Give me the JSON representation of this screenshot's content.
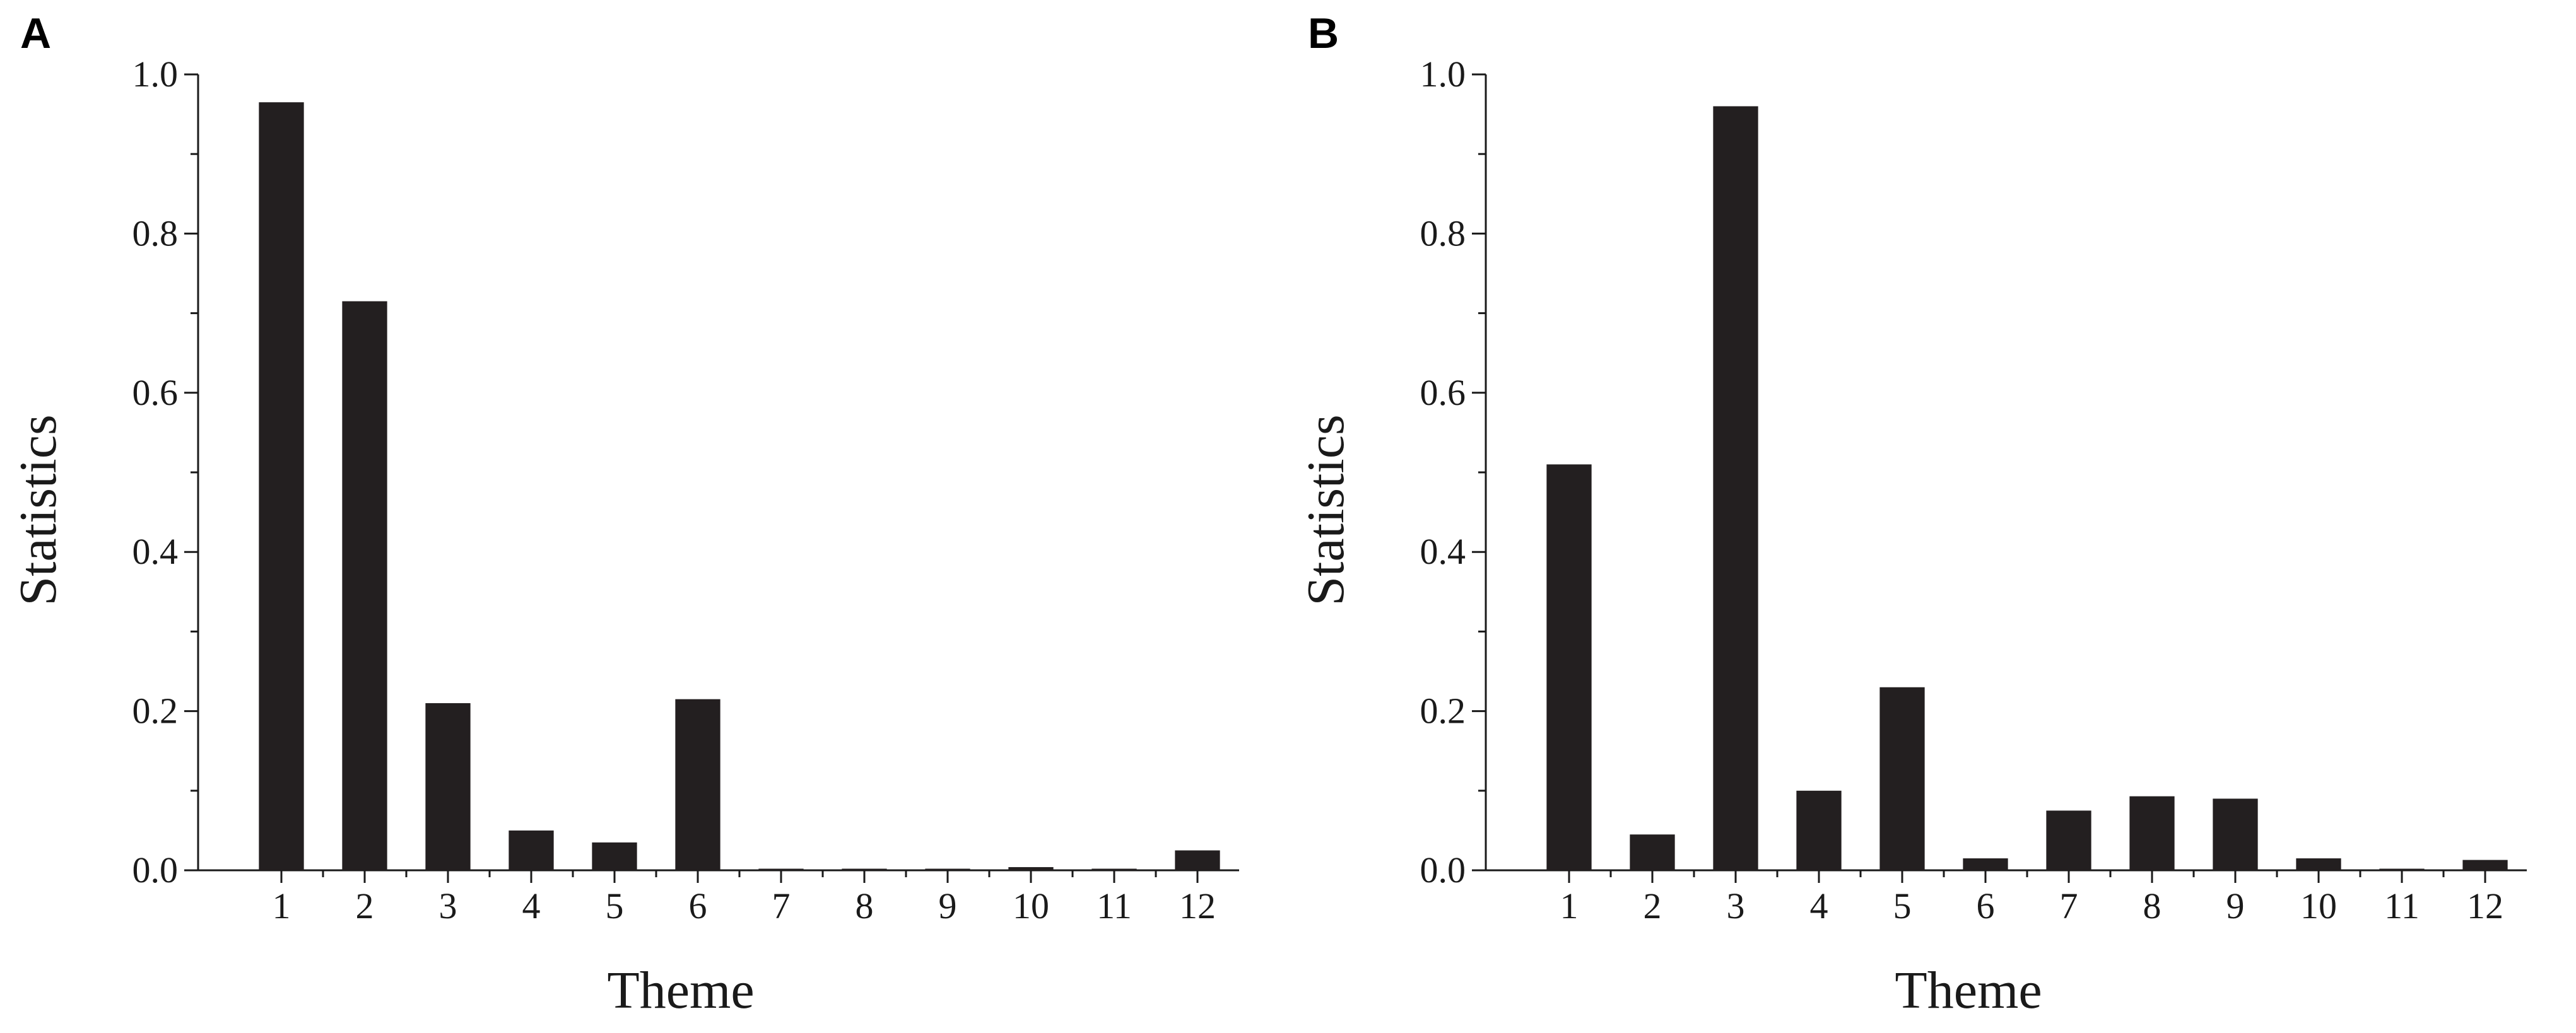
{
  "chart_data": [
    {
      "panel_label": "A",
      "type": "bar",
      "categories": [
        "1",
        "2",
        "3",
        "4",
        "5",
        "6",
        "7",
        "8",
        "9",
        "10",
        "11",
        "12"
      ],
      "values": [
        0.965,
        0.715,
        0.21,
        0.05,
        0.035,
        0.215,
        0.002,
        0.002,
        0.002,
        0.004,
        0.002,
        0.025
      ],
      "xlabel": "Theme",
      "ylabel": "Statistics",
      "ylim": [
        0,
        1.0
      ],
      "yticks": [
        "0.0",
        "0.2",
        "0.4",
        "0.6",
        "0.8",
        "1.0"
      ],
      "grid": false,
      "bar_color": "#231f20"
    },
    {
      "panel_label": "B",
      "type": "bar",
      "categories": [
        "1",
        "2",
        "3",
        "4",
        "5",
        "6",
        "7",
        "8",
        "9",
        "10",
        "11",
        "12"
      ],
      "values": [
        0.51,
        0.045,
        0.96,
        0.1,
        0.23,
        0.015,
        0.075,
        0.093,
        0.09,
        0.015,
        0.002,
        0.013
      ],
      "xlabel": "Theme",
      "ylabel": "Statistics",
      "ylim": [
        0,
        1.0
      ],
      "yticks": [
        "0.0",
        "0.2",
        "0.4",
        "0.6",
        "0.8",
        "1.0"
      ],
      "grid": false,
      "bar_color": "#231f20"
    }
  ]
}
